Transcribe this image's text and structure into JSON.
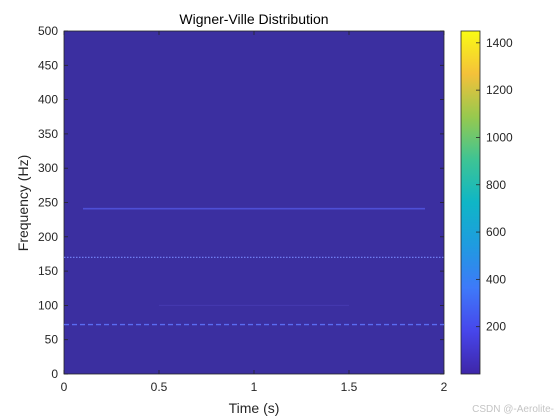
{
  "chart_data": {
    "type": "heatmap",
    "title": "Wigner-Ville Distribution",
    "xlabel": "Time (s)",
    "ylabel": "Frequency (Hz)",
    "xlim": [
      0,
      2
    ],
    "ylim": [
      0,
      500
    ],
    "xticks": [
      0,
      0.5,
      1,
      1.5,
      2
    ],
    "xtick_labels": [
      "0",
      "0.5",
      "1",
      "1.5",
      "2"
    ],
    "yticks": [
      0,
      50,
      100,
      150,
      200,
      250,
      300,
      350,
      400,
      450,
      500
    ],
    "ytick_labels": [
      "0",
      "50",
      "100",
      "150",
      "200",
      "250",
      "300",
      "350",
      "400",
      "450",
      "500"
    ],
    "grid": false,
    "colormap": "parula",
    "background_color": "#3b2fa0",
    "colorbar": {
      "range": [
        0,
        1450
      ],
      "ticks": [
        200,
        400,
        600,
        800,
        1000,
        1200,
        1400
      ],
      "tick_labels": [
        "200",
        "400",
        "600",
        "800",
        "1000",
        "1200",
        "1400"
      ]
    },
    "bands": [
      {
        "frequency": 72,
        "t_start": 0.0,
        "t_end": 2.0,
        "intensity": 380,
        "color": "#5a6cf2",
        "style": "dashed"
      },
      {
        "frequency": 100,
        "t_start": 0.5,
        "t_end": 1.5,
        "intensity": 120,
        "color": "#4a3fb8",
        "style": "faint"
      },
      {
        "frequency": 170,
        "t_start": 0.0,
        "t_end": 2.0,
        "intensity": 300,
        "color": "#6f7cf0",
        "style": "dotted"
      },
      {
        "frequency": 241,
        "t_start": 0.1,
        "t_end": 1.9,
        "intensity": 220,
        "color": "#4e4fd6",
        "style": "solid"
      }
    ]
  },
  "watermark": "CSDN @-Aerolite-"
}
